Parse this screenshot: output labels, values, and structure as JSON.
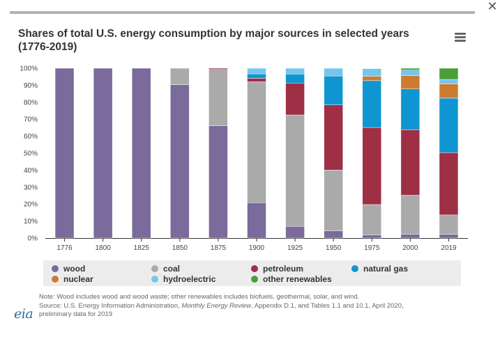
{
  "window": {
    "close_glyph": "✕"
  },
  "title": "Shares of total U.S. energy consumption by major sources in selected years (1776-2019)",
  "menu_icon": "hamburger-menu-icon",
  "chart_data": {
    "type": "bar",
    "stacked": true,
    "title": "Shares of total U.S. energy consumption by major sources in selected years (1776-2019)",
    "xlabel": "",
    "ylabel": "",
    "ylim": [
      0,
      100
    ],
    "y_ticks": [
      "0%",
      "10%",
      "20%",
      "30%",
      "40%",
      "50%",
      "60%",
      "70%",
      "80%",
      "90%",
      "100%"
    ],
    "categories": [
      "1776",
      "1800",
      "1825",
      "1850",
      "1875",
      "1900",
      "1925",
      "1950",
      "1975",
      "2000",
      "2019"
    ],
    "series": [
      {
        "name": "wood",
        "color": "#7b6a9c",
        "values": [
          100,
          100,
          100,
          90.3,
          66.2,
          20.8,
          6.9,
          4.2,
          1.9,
          2.3,
          2.2
        ]
      },
      {
        "name": "coal",
        "color": "#aaaaaa",
        "values": [
          0,
          0,
          0,
          9.7,
          33.1,
          71.2,
          65.6,
          35.8,
          17.8,
          22.9,
          11.4
        ]
      },
      {
        "name": "petroleum",
        "color": "#9e2f45",
        "values": [
          0,
          0,
          0,
          0,
          0.7,
          2.1,
          18.8,
          38.4,
          45.4,
          38.6,
          36.7
        ]
      },
      {
        "name": "natural gas",
        "color": "#0f96d2",
        "values": [
          0,
          0,
          0,
          0,
          0,
          2.6,
          5.3,
          17.0,
          27.6,
          24.0,
          32.1
        ]
      },
      {
        "name": "nuclear",
        "color": "#cc7b30",
        "values": [
          0,
          0,
          0,
          0,
          0,
          0,
          0,
          0,
          2.5,
          7.9,
          8.4
        ]
      },
      {
        "name": "hydroelectric",
        "color": "#75c5ec",
        "values": [
          0,
          0,
          0,
          0,
          0,
          3.3,
          3.4,
          4.6,
          4.6,
          3.2,
          2.6
        ]
      },
      {
        "name": "other renewables",
        "color": "#4a9e3a",
        "values": [
          0,
          0,
          0,
          0,
          0,
          0,
          0,
          0,
          0.2,
          1.1,
          6.6
        ]
      }
    ]
  },
  "legend": [
    {
      "label": "wood",
      "color": "#7b6a9c"
    },
    {
      "label": "coal",
      "color": "#aaaaaa"
    },
    {
      "label": "petroleum",
      "color": "#9e2f45"
    },
    {
      "label": "natural gas",
      "color": "#0f96d2"
    },
    {
      "label": "nuclear",
      "color": "#cc7b30"
    },
    {
      "label": "hydroelectric",
      "color": "#75c5ec"
    },
    {
      "label": "other renewables",
      "color": "#4a9e3a"
    }
  ],
  "notes": {
    "note": "Note: Wood includes wood and wood waste; other renewables includes biofuels, geothermal, solar, and wind.",
    "source_prefix": "Source: U.S. Energy Information Administration, ",
    "source_italic": "Monthly Energy Review",
    "source_suffix": ", Appendix D.1, and Tables 1.1 and 10.1, April 2020,",
    "source_line2": "preliminary data for 2019"
  },
  "logo_text": "eia"
}
